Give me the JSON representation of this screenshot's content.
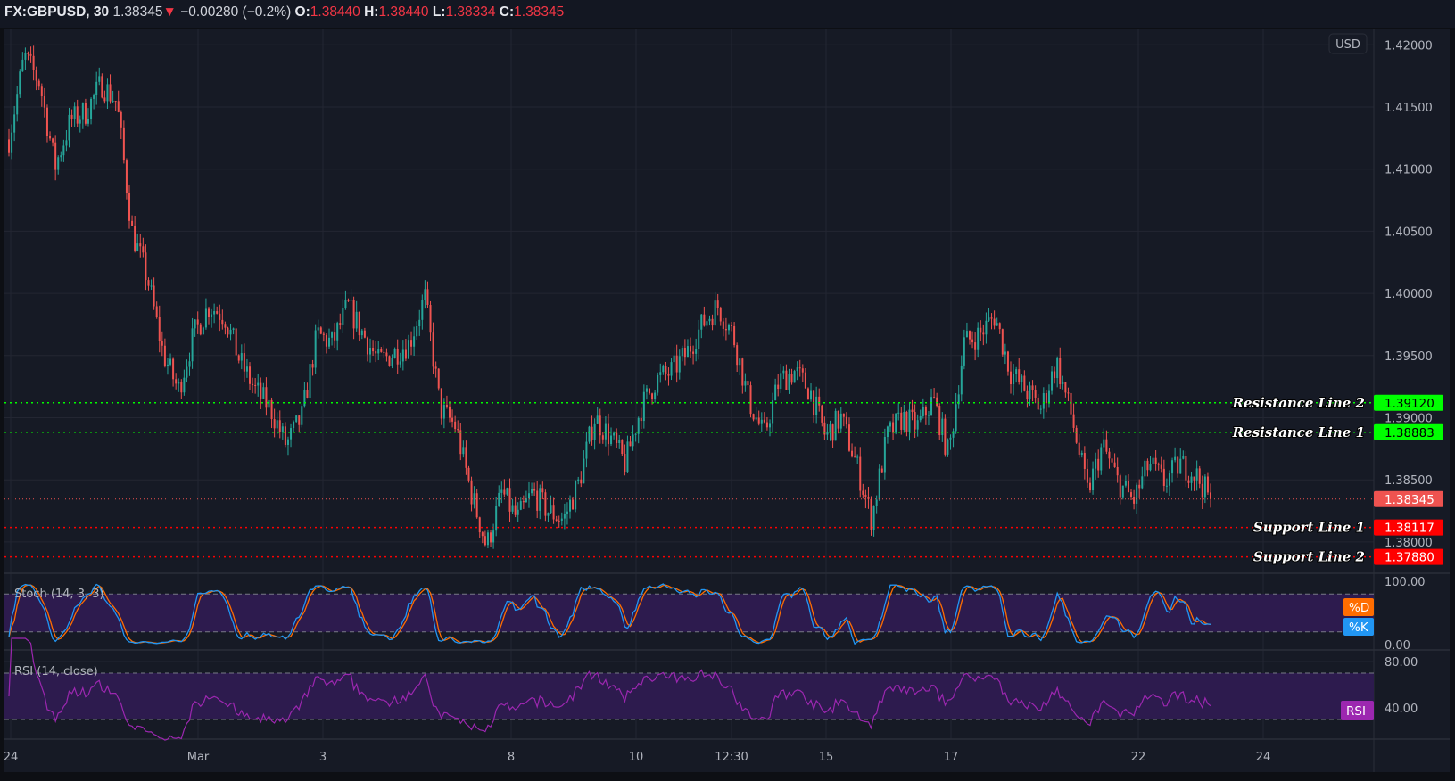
{
  "header": {
    "symbol": "FX:GBPUSD, 30",
    "last": "1.38345",
    "direction_icon": "triangle-down-icon",
    "change": "−0.00280 (−0.2%)",
    "o_label": "O:",
    "o": "1.38440",
    "h_label": "H:",
    "h": "1.38440",
    "l_label": "L:",
    "l": "1.38334",
    "c_label": "C:",
    "c": "1.38345"
  },
  "currency_badge": "USD",
  "colors": {
    "background": "#161a25",
    "grid": "#232632",
    "up": "#26a69a",
    "down": "#ef5350",
    "resistance": "#00ff00",
    "support": "#ff0000",
    "last_price": "#ef5350",
    "stoch_k": "#2196f3",
    "stoch_d": "#ff6d00",
    "rsi": "#9c27b0",
    "band": "#2d1b4e"
  },
  "chart_data": [
    {
      "type": "candlestick",
      "title": "FX:GBPUSD, 30",
      "timeframe": "30",
      "y_ticks": [
        "1.42000",
        "1.41500",
        "1.41000",
        "1.40500",
        "1.40000",
        "1.39500",
        "1.39000",
        "1.38500",
        "1.38000"
      ],
      "ylim": [
        1.3775,
        1.4215
      ],
      "x_ticks": [
        "24",
        "Mar",
        "3",
        "8",
        "10",
        "12:30",
        "15",
        "17",
        "22",
        "24"
      ],
      "grid": true,
      "approx_close_path": [
        1.41239,
        1.4191,
        1.4169,
        1.4102,
        1.4139,
        1.4146,
        1.4169,
        1.4154,
        1.4049,
        1.4012,
        1.3952,
        1.3922,
        1.3967,
        1.399,
        1.3982,
        1.3945,
        1.3922,
        1.3907,
        1.3878,
        1.39,
        1.3967,
        1.396,
        1.399,
        1.3967,
        1.3945,
        1.3952,
        1.396,
        1.3997,
        1.3907,
        1.3893,
        1.384,
        1.3796,
        1.384,
        1.3818,
        1.384,
        1.3825,
        1.3818,
        1.3848,
        1.39,
        1.3885,
        1.3863,
        1.3907,
        1.393,
        1.3937,
        1.3952,
        1.3975,
        1.399,
        1.3967,
        1.3915,
        1.3885,
        1.393,
        1.3937,
        1.3922,
        1.3885,
        1.39,
        1.3863,
        1.3818,
        1.3885,
        1.39,
        1.3893,
        1.3915,
        1.387,
        1.396,
        1.3967,
        1.3982,
        1.3937,
        1.3922,
        1.3907,
        1.3945,
        1.39,
        1.384,
        1.3878,
        1.3848,
        1.3833,
        1.3863,
        1.3848,
        1.3863,
        1.3855,
        1.38345
      ],
      "last_price": {
        "value": 1.38345,
        "label": "1.38345"
      },
      "horizontal_lines": [
        {
          "name": "Resistance Line 2",
          "value": 1.3912,
          "label": "1.39120",
          "kind": "resistance"
        },
        {
          "name": "Resistance Line 1",
          "value": 1.38883,
          "label": "1.38883",
          "kind": "resistance"
        },
        {
          "name": "Support Line 1",
          "value": 1.38117,
          "label": "1.38117",
          "kind": "support"
        },
        {
          "name": "Support Line 2",
          "value": 1.3788,
          "label": "1.37880",
          "kind": "support"
        }
      ]
    },
    {
      "type": "line",
      "title": "Stoch (14, 3, 3)",
      "y_ticks": [
        "100.00",
        "0.00"
      ],
      "ylim": [
        0,
        100
      ],
      "bands": [
        20,
        80
      ],
      "series": [
        {
          "name": "%K"
        },
        {
          "name": "%D"
        }
      ]
    },
    {
      "type": "line",
      "title": "RSI (14, close)",
      "y_ticks": [
        "80.00",
        "40.00"
      ],
      "bands": [
        30,
        70
      ],
      "series": [
        {
          "name": "RSI"
        }
      ]
    }
  ]
}
